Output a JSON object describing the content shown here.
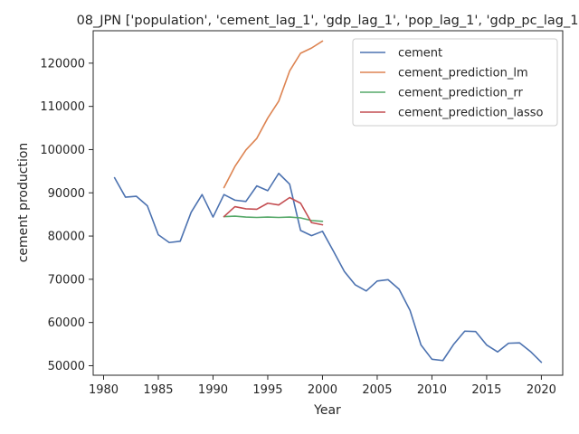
{
  "chart_data": {
    "type": "line",
    "title": "08_JPN ['population', 'cement_lag_1', 'gdp_lag_1', 'pop_lag_1', 'gdp_pc_lag_1",
    "xlabel": "Year",
    "ylabel": "cement production",
    "xlim": [
      1979.05,
      2021.95
    ],
    "ylim": [
      47800,
      127500
    ],
    "x_ticks": [
      1980,
      1985,
      1990,
      1995,
      2000,
      2005,
      2010,
      2015,
      2020
    ],
    "y_ticks": [
      50000,
      60000,
      70000,
      80000,
      90000,
      100000,
      110000,
      120000
    ],
    "grid": false,
    "legend_position": "top-right",
    "series": [
      {
        "name": "cement",
        "color": "#4c72b0",
        "x": [
          1981,
          1982,
          1983,
          1984,
          1985,
          1986,
          1987,
          1988,
          1989,
          1990,
          1991,
          1992,
          1993,
          1994,
          1995,
          1996,
          1997,
          1998,
          1999,
          2000,
          2001,
          2002,
          2003,
          2004,
          2005,
          2006,
          2007,
          2008,
          2009,
          2010,
          2011,
          2012,
          2013,
          2014,
          2015,
          2016,
          2017,
          2018,
          2019,
          2020
        ],
        "values": [
          93500,
          89000,
          89200,
          87000,
          80300,
          78500,
          78800,
          85500,
          89600,
          84400,
          89600,
          88300,
          88000,
          91600,
          90500,
          94500,
          92000,
          81300,
          80100,
          81100,
          76500,
          71800,
          68700,
          67300,
          69600,
          69900,
          67700,
          62800,
          54800,
          51500,
          51200,
          55000,
          58000,
          57900,
          54800,
          53200,
          55200,
          55300,
          53300,
          50800
        ]
      },
      {
        "name": "cement_prediction_lm",
        "color": "#dd8452",
        "x": [
          1991,
          1992,
          1993,
          1994,
          1995,
          1996,
          1997,
          1998,
          1999,
          2000
        ],
        "values": [
          91200,
          96100,
          99900,
          102600,
          107300,
          111200,
          118200,
          122300,
          123500,
          125100
        ]
      },
      {
        "name": "cement_prediction_rr",
        "color": "#55a868",
        "x": [
          1991,
          1992,
          1993,
          1994,
          1995,
          1996,
          1997,
          1998,
          1999,
          2000
        ],
        "values": [
          84500,
          84600,
          84400,
          84300,
          84400,
          84300,
          84400,
          84200,
          83600,
          83400
        ]
      },
      {
        "name": "cement_prediction_lasso",
        "color": "#c44e52",
        "x": [
          1991,
          1992,
          1993,
          1994,
          1995,
          1996,
          1997,
          1998,
          1999,
          2000
        ],
        "values": [
          84500,
          86800,
          86300,
          86200,
          87600,
          87200,
          88900,
          87600,
          83100,
          82600
        ]
      }
    ]
  }
}
